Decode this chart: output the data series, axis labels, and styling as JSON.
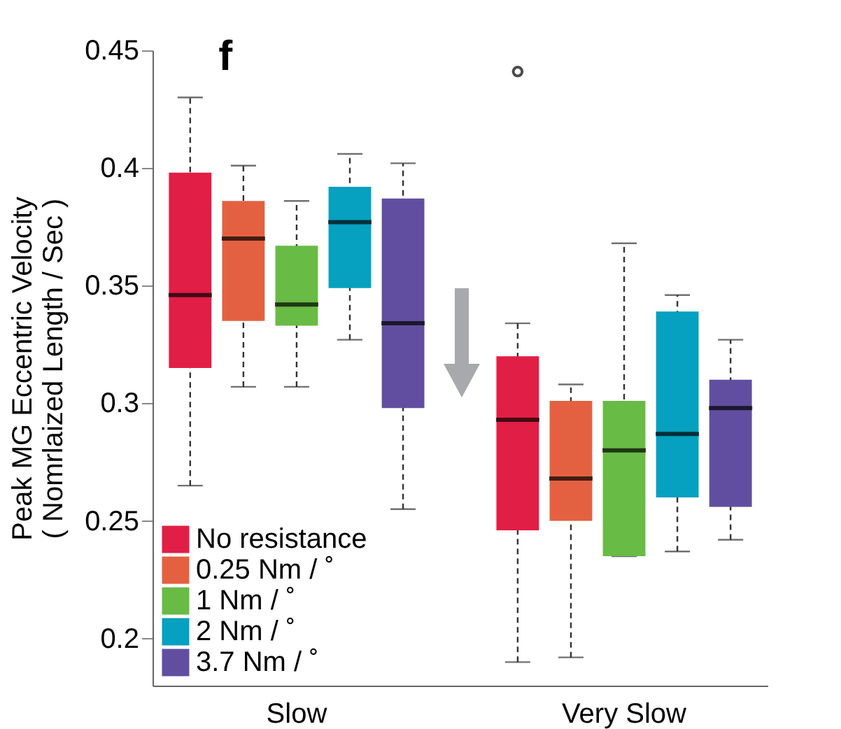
{
  "chart_data": {
    "type": "box",
    "title": "f",
    "ylabel": "Peak MG Eccentric Velocity\n( Nomrlaized Length / Sec )",
    "categories": [
      "Slow",
      "Very Slow"
    ],
    "ylim": [
      0.18,
      0.45
    ],
    "yticks": [
      0.2,
      0.25,
      0.3,
      0.35,
      0.4,
      0.45
    ],
    "grid": false,
    "legend": "bottom left",
    "series": [
      {
        "name": "No resistance",
        "color": "#e11e45",
        "boxes": [
          {
            "low": 0.265,
            "q1": 0.315,
            "median": 0.346,
            "q3": 0.398,
            "high": 0.43
          },
          {
            "low": 0.19,
            "q1": 0.246,
            "median": 0.293,
            "q3": 0.32,
            "high": 0.334,
            "outliers": [
              0.441
            ]
          }
        ]
      },
      {
        "name": "0.25 Nm / ˚",
        "color": "#e36140",
        "boxes": [
          {
            "low": 0.307,
            "q1": 0.335,
            "median": 0.37,
            "q3": 0.386,
            "high": 0.401
          },
          {
            "low": 0.192,
            "q1": 0.25,
            "median": 0.268,
            "q3": 0.301,
            "high": 0.308
          }
        ]
      },
      {
        "name": "1 Nm / ˚",
        "color": "#68bb45",
        "boxes": [
          {
            "low": 0.307,
            "q1": 0.333,
            "median": 0.342,
            "q3": 0.367,
            "high": 0.386
          },
          {
            "low": 0.235,
            "q1": 0.235,
            "median": 0.28,
            "q3": 0.301,
            "high": 0.368
          }
        ]
      },
      {
        "name": "2 Nm / ˚",
        "color": "#06a0c0",
        "boxes": [
          {
            "low": 0.327,
            "q1": 0.349,
            "median": 0.377,
            "q3": 0.392,
            "high": 0.406
          },
          {
            "low": 0.237,
            "q1": 0.26,
            "median": 0.287,
            "q3": 0.339,
            "high": 0.346
          }
        ]
      },
      {
        "name": "3.7 Nm / ˚",
        "color": "#614ea0",
        "boxes": [
          {
            "low": 0.255,
            "q1": 0.298,
            "median": 0.334,
            "q3": 0.387,
            "high": 0.402
          },
          {
            "low": 0.242,
            "q1": 0.256,
            "median": 0.298,
            "q3": 0.31,
            "high": 0.327
          }
        ]
      }
    ]
  }
}
